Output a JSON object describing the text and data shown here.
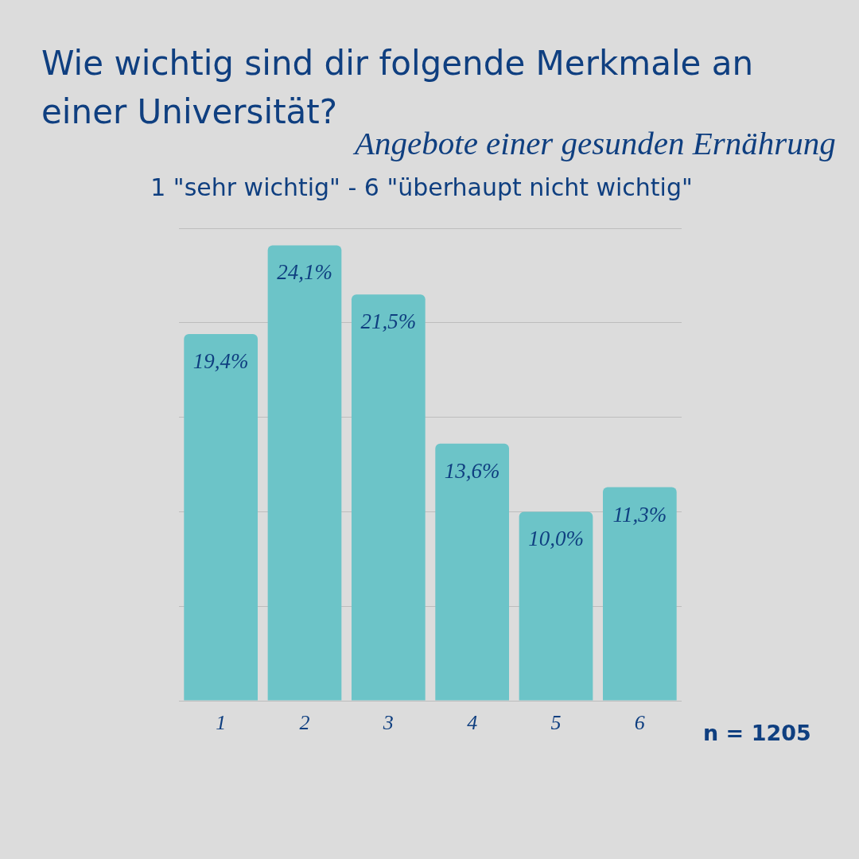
{
  "chart_data": {
    "type": "bar",
    "title": "Wie wichtig sind dir folgende Merkmale an einer Universität?",
    "subtitle": "Angebote einer gesunden Ernährung",
    "annotations": [
      "1 \"sehr wichtig\" - 6 \"überhaupt nicht wichtig\"",
      "n = 1205"
    ],
    "categories": [
      "1",
      "2",
      "3",
      "4",
      "5",
      "6"
    ],
    "values": [
      19.4,
      24.1,
      21.5,
      13.6,
      10.0,
      11.3
    ],
    "value_labels": [
      "19,4%",
      "24,1%",
      "21,5%",
      "13,6%",
      "10,0%",
      "11,3%"
    ],
    "color": "#6cc4c8",
    "ylim": [
      0,
      25
    ],
    "yticks": [
      {
        "value": 0,
        "label": null
      },
      {
        "value": 5,
        "label": null
      },
      {
        "value": 10,
        "label": null
      },
      {
        "value": 15,
        "label": null
      },
      {
        "value": 20,
        "label": null
      },
      {
        "value": 25,
        "label": null
      }
    ],
    "grid": "y",
    "tick_labels": "x"
  }
}
